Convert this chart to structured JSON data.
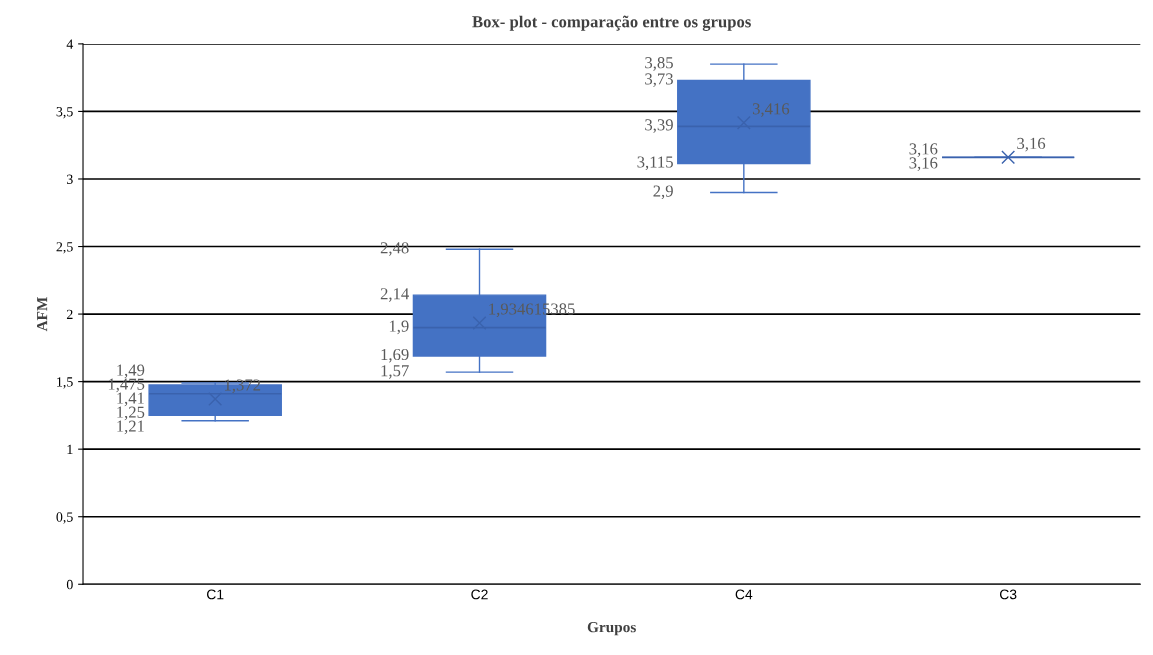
{
  "chart_data": {
    "type": "box",
    "title": "Box- plot - comparação entre os grupos",
    "xlabel": "Grupos",
    "ylabel": "AFM",
    "categories": [
      "C1",
      "C2",
      "C4",
      "C3"
    ],
    "boxes": [
      {
        "low": 1.21,
        "q1": 1.25,
        "median": 1.41,
        "q3": 1.475,
        "high": 1.49,
        "mean": 1.372
      },
      {
        "low": 1.57,
        "q1": 1.69,
        "median": 1.9,
        "q3": 2.14,
        "high": 2.48,
        "mean": 1.934615385
      },
      {
        "low": 2.9,
        "q1": 3.115,
        "median": 3.39,
        "q3": 3.73,
        "high": 3.85,
        "mean": 3.416
      },
      {
        "low": 3.16,
        "q1": 3.16,
        "median": 3.16,
        "q3": 3.16,
        "high": 3.16,
        "mean": 3.16
      }
    ],
    "color": "#4472c4",
    "ylim": [
      0,
      4
    ],
    "yticks": [
      0,
      {
        "value": 0.5,
        "label": "0,5"
      },
      1,
      {
        "value": 1.5,
        "label": "1,5"
      },
      2,
      {
        "value": 2.5,
        "label": "2,5"
      },
      3,
      {
        "value": 3.5,
        "label": "3,5"
      },
      4
    ],
    "value_labels": [
      {
        "low": "1,21",
        "q1": "1,25",
        "median": "1,41",
        "q3": "1,475",
        "high": "1,49",
        "mean": "1,372"
      },
      {
        "low": "1,57",
        "q1": "1,69",
        "median": "1,9",
        "q3": "2,14",
        "high": "2,48",
        "mean": "1,934615385"
      },
      {
        "low": "2,9",
        "q1": "3,115",
        "median": "3,39",
        "q3": "3,73",
        "high": "3,85",
        "mean": "3,416"
      },
      {
        "low": null,
        "q1": "3,16",
        "median": "3,16",
        "q3": null,
        "high": null,
        "mean": "3,16"
      }
    ],
    "grid": "y",
    "marker": "cross"
  }
}
